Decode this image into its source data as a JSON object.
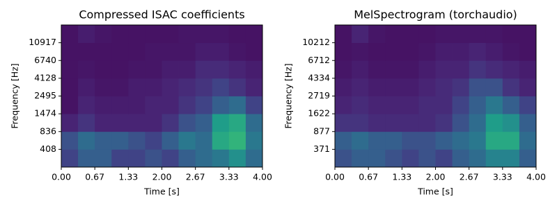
{
  "chart_data": [
    {
      "type": "heatmap",
      "title": "Compressed ISAC coefficients",
      "xlabel": "Time [s]",
      "ylabel": "Frequency [Hz]",
      "colormap": "viridis",
      "xlim": [
        0,
        4
      ],
      "xticks": [
        {
          "value": 0,
          "label": "0.00"
        },
        {
          "value": 0.6667,
          "label": "0.67"
        },
        {
          "value": 1.3333,
          "label": "1.33"
        },
        {
          "value": 2,
          "label": "2.00"
        },
        {
          "value": 2.6667,
          "label": "2.67"
        },
        {
          "value": 3.3333,
          "label": "3.33"
        },
        {
          "value": 4,
          "label": "4.00"
        }
      ],
      "ylim": [
        0,
        8
      ],
      "yticks": [
        {
          "value": 1,
          "label": "408"
        },
        {
          "value": 2,
          "label": "836"
        },
        {
          "value": 3,
          "label": "1474"
        },
        {
          "value": 4,
          "label": "2495"
        },
        {
          "value": 5,
          "label": "4128"
        },
        {
          "value": 6,
          "label": "6740"
        },
        {
          "value": 7,
          "label": "10917"
        }
      ],
      "z": [
        [
          0.2,
          0.3,
          0.3,
          0.2,
          0.2,
          0.25,
          0.2,
          0.3,
          0.35,
          0.4,
          0.5,
          0.35
        ],
        [
          0.25,
          0.35,
          0.3,
          0.3,
          0.25,
          0.2,
          0.3,
          0.4,
          0.35,
          0.6,
          0.65,
          0.4
        ],
        [
          0.1,
          0.15,
          0.1,
          0.1,
          0.1,
          0.1,
          0.15,
          0.25,
          0.3,
          0.55,
          0.6,
          0.35
        ],
        [
          0.05,
          0.1,
          0.08,
          0.08,
          0.08,
          0.1,
          0.1,
          0.15,
          0.2,
          0.3,
          0.35,
          0.2
        ],
        [
          0.05,
          0.08,
          0.06,
          0.06,
          0.08,
          0.08,
          0.1,
          0.12,
          0.15,
          0.2,
          0.15,
          0.1
        ],
        [
          0.05,
          0.06,
          0.05,
          0.05,
          0.06,
          0.06,
          0.08,
          0.08,
          0.12,
          0.12,
          0.1,
          0.08
        ],
        [
          0.05,
          0.05,
          0.05,
          0.05,
          0.05,
          0.06,
          0.06,
          0.06,
          0.08,
          0.08,
          0.06,
          0.05
        ],
        [
          0.05,
          0.08,
          0.06,
          0.05,
          0.05,
          0.05,
          0.05,
          0.06,
          0.06,
          0.06,
          0.05,
          0.05
        ]
      ]
    },
    {
      "type": "heatmap",
      "title": "MelSpectrogram (torchaudio)",
      "xlabel": "Time [s]",
      "ylabel": "Frequency [Hz]",
      "colormap": "viridis",
      "xlim": [
        0,
        4
      ],
      "xticks": [
        {
          "value": 0,
          "label": "0.00"
        },
        {
          "value": 0.6667,
          "label": "0.67"
        },
        {
          "value": 1.3333,
          "label": "1.33"
        },
        {
          "value": 2,
          "label": "2.00"
        },
        {
          "value": 2.6667,
          "label": "2.67"
        },
        {
          "value": 3.3333,
          "label": "3.33"
        },
        {
          "value": 4,
          "label": "4.00"
        }
      ],
      "ylim": [
        0,
        8
      ],
      "yticks": [
        {
          "value": 1,
          "label": "371"
        },
        {
          "value": 2,
          "label": "877"
        },
        {
          "value": 3,
          "label": "1622"
        },
        {
          "value": 4,
          "label": "2719"
        },
        {
          "value": 5,
          "label": "4334"
        },
        {
          "value": 6,
          "label": "6712"
        },
        {
          "value": 7,
          "label": "10212"
        }
      ],
      "z": [
        [
          0.25,
          0.3,
          0.3,
          0.25,
          0.2,
          0.25,
          0.2,
          0.3,
          0.35,
          0.45,
          0.45,
          0.3
        ],
        [
          0.3,
          0.35,
          0.3,
          0.3,
          0.25,
          0.25,
          0.3,
          0.35,
          0.4,
          0.6,
          0.6,
          0.35
        ],
        [
          0.15,
          0.15,
          0.12,
          0.12,
          0.12,
          0.12,
          0.15,
          0.25,
          0.35,
          0.55,
          0.5,
          0.3
        ],
        [
          0.1,
          0.12,
          0.1,
          0.1,
          0.1,
          0.12,
          0.12,
          0.2,
          0.3,
          0.4,
          0.3,
          0.2
        ],
        [
          0.08,
          0.1,
          0.08,
          0.08,
          0.08,
          0.1,
          0.12,
          0.15,
          0.25,
          0.25,
          0.15,
          0.1
        ],
        [
          0.06,
          0.08,
          0.06,
          0.06,
          0.06,
          0.08,
          0.1,
          0.1,
          0.15,
          0.12,
          0.1,
          0.08
        ],
        [
          0.05,
          0.06,
          0.05,
          0.05,
          0.05,
          0.06,
          0.08,
          0.08,
          0.1,
          0.08,
          0.06,
          0.05
        ],
        [
          0.05,
          0.1,
          0.06,
          0.05,
          0.05,
          0.05,
          0.06,
          0.06,
          0.06,
          0.06,
          0.05,
          0.05
        ]
      ]
    }
  ]
}
